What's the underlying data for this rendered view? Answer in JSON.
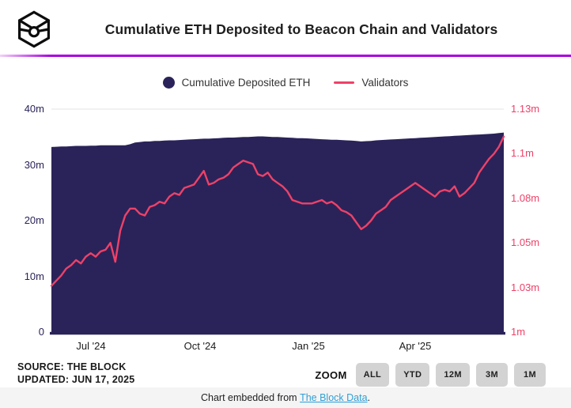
{
  "header": {
    "title": "Cumulative ETH Deposited to Beacon Chain and Validators",
    "logo_icon": "the-block-cube-logo"
  },
  "legend": {
    "items": [
      {
        "label": "Cumulative Deposited ETH",
        "swatch": "dot",
        "color": "#2a2359"
      },
      {
        "label": "Validators",
        "swatch": "line",
        "color": "#ee4168"
      }
    ]
  },
  "chart_data": {
    "type": "area",
    "title": "Cumulative ETH Deposited to Beacon Chain and Validators",
    "x_range": [
      "late May 2024",
      "Jun 17 2025"
    ],
    "x_ticks": [
      {
        "label": "Jul '24",
        "pos": 0.0874
      },
      {
        "label": "Oct '24",
        "pos": 0.3287
      },
      {
        "label": "Jan '25",
        "pos": 0.5682
      },
      {
        "label": "Apr '25",
        "pos": 0.8042
      }
    ],
    "left_axis": {
      "unit": "millions of ETH",
      "range": [
        0,
        40
      ],
      "ticks": [
        "0",
        "10m",
        "20m",
        "30m",
        "40m"
      ],
      "color": "#2a2359"
    },
    "right_axis": {
      "unit": "millions of validators",
      "range": [
        1,
        1.13
      ],
      "ticks": [
        "1m",
        "1.03m",
        "1.05m",
        "1.08m",
        "1.1m",
        "1.13m"
      ],
      "color": "#ee4168"
    },
    "grid": "top-line-only",
    "legend_position": "top-center",
    "series": [
      {
        "name": "Cumulative Deposited ETH",
        "type": "area",
        "axis": "left",
        "color": "#2a2359",
        "unit": "m ETH",
        "values": [
          33.2,
          33.25,
          33.3,
          33.3,
          33.35,
          33.4,
          33.4,
          33.4,
          33.45,
          33.45,
          33.5,
          33.5,
          33.5,
          33.5,
          33.5,
          33.5,
          33.7,
          34.0,
          34.1,
          34.2,
          34.2,
          34.3,
          34.3,
          34.35,
          34.4,
          34.4,
          34.45,
          34.5,
          34.55,
          34.6,
          34.65,
          34.7,
          34.7,
          34.75,
          34.8,
          34.85,
          34.9,
          34.9,
          34.95,
          35.0,
          35.0,
          35.05,
          35.1,
          35.1,
          35.05,
          35.0,
          35.0,
          34.95,
          34.9,
          34.85,
          34.8,
          34.8,
          34.75,
          34.7,
          34.65,
          34.6,
          34.55,
          34.5,
          34.5,
          34.45,
          34.4,
          34.35,
          34.3,
          34.2,
          34.25,
          34.3,
          34.4,
          34.45,
          34.5,
          34.55,
          34.6,
          34.65,
          34.7,
          34.75,
          34.8,
          34.85,
          34.9,
          34.95,
          35.0,
          35.05,
          35.1,
          35.15,
          35.2,
          35.25,
          35.3,
          35.35,
          35.4,
          35.45,
          35.5,
          35.55,
          35.6,
          35.7,
          35.8
        ]
      },
      {
        "name": "Validators",
        "type": "line",
        "axis": "right",
        "color": "#ee4168",
        "unit": "m",
        "values": [
          1.027,
          1.03,
          1.033,
          1.037,
          1.039,
          1.042,
          1.04,
          1.044,
          1.046,
          1.044,
          1.047,
          1.048,
          1.052,
          1.041,
          1.059,
          1.068,
          1.072,
          1.072,
          1.069,
          1.068,
          1.073,
          1.074,
          1.076,
          1.075,
          1.079,
          1.081,
          1.08,
          1.084,
          1.085,
          1.086,
          1.09,
          1.094,
          1.086,
          1.087,
          1.089,
          1.09,
          1.092,
          1.096,
          1.098,
          1.1,
          1.099,
          1.098,
          1.092,
          1.091,
          1.093,
          1.089,
          1.087,
          1.085,
          1.082,
          1.077,
          1.076,
          1.075,
          1.075,
          1.075,
          1.076,
          1.077,
          1.075,
          1.076,
          1.074,
          1.071,
          1.07,
          1.068,
          1.064,
          1.06,
          1.062,
          1.065,
          1.069,
          1.071,
          1.073,
          1.077,
          1.079,
          1.081,
          1.083,
          1.085,
          1.087,
          1.085,
          1.083,
          1.081,
          1.079,
          1.082,
          1.083,
          1.082,
          1.085,
          1.079,
          1.081,
          1.084,
          1.087,
          1.093,
          1.097,
          1.101,
          1.104,
          1.108,
          1.114
        ]
      }
    ]
  },
  "source": {
    "line1": "SOURCE: THE BLOCK",
    "line2": "UPDATED: JUN 17, 2025"
  },
  "zoom": {
    "label": "ZOOM",
    "options": [
      "ALL",
      "YTD",
      "12M",
      "3M",
      "1M"
    ]
  },
  "footer": {
    "prefix": "Chart embedded from ",
    "link_text": "The Block Data",
    "suffix": "."
  },
  "colors": {
    "area": "#2a2359",
    "line": "#ee4168",
    "accent_bar": "#a705dc",
    "grid": "#e3e3e3",
    "button_bg": "#d3d3d3",
    "footer_bg": "#f4f4f4",
    "link": "#2f9fd6"
  }
}
